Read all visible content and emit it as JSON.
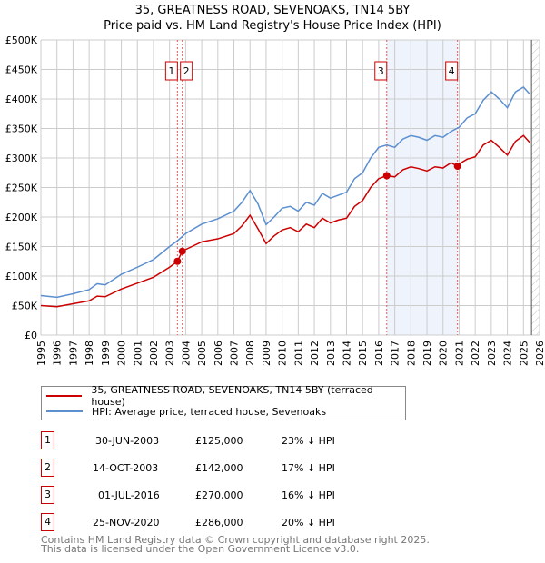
{
  "chart_data": {
    "type": "line",
    "title": "35, GREATNESS ROAD, SEVENOAKS, TN14 5BY",
    "subtitle": "Price paid vs. HM Land Registry's House Price Index (HPI)",
    "xlim": [
      1995,
      2026
    ],
    "ylim": [
      0,
      500000
    ],
    "x_ticks": [
      1995,
      1996,
      1997,
      1998,
      1999,
      2000,
      2001,
      2002,
      2003,
      2004,
      2005,
      2006,
      2007,
      2008,
      2009,
      2010,
      2011,
      2012,
      2013,
      2014,
      2015,
      2016,
      2017,
      2018,
      2019,
      2020,
      2021,
      2022,
      2023,
      2024,
      2025,
      2026
    ],
    "y_ticks": [
      {
        "v": 0,
        "label": "£0"
      },
      {
        "v": 50000,
        "label": "£50K"
      },
      {
        "v": 100000,
        "label": "£100K"
      },
      {
        "v": 150000,
        "label": "£150K"
      },
      {
        "v": 200000,
        "label": "£200K"
      },
      {
        "v": 250000,
        "label": "£250K"
      },
      {
        "v": 300000,
        "label": "£300K"
      },
      {
        "v": 350000,
        "label": "£350K"
      },
      {
        "v": 400000,
        "label": "£400K"
      },
      {
        "v": 450000,
        "label": "£450K"
      },
      {
        "v": 500000,
        "label": "£500K"
      }
    ],
    "grid": true,
    "series": [
      {
        "name": "35, GREATNESS ROAD, SEVENOAKS, TN14 5BY (terraced house)",
        "color": "#cc0000",
        "x": [
          1995,
          1996,
          1997,
          1998,
          1998.5,
          1999,
          2000,
          2001,
          2002,
          2003,
          2003.49,
          2003.79,
          2004,
          2005,
          2006,
          2007,
          2007.5,
          2008,
          2008.5,
          2009,
          2009.5,
          2010,
          2010.5,
          2011,
          2011.5,
          2012,
          2012.5,
          2013,
          2013.5,
          2014,
          2014.5,
          2015,
          2015.5,
          2016,
          2016.5,
          2017,
          2017.5,
          2018,
          2018.5,
          2019,
          2019.5,
          2020,
          2020.5,
          2020.9,
          2021,
          2021.5,
          2022,
          2022.5,
          2023,
          2023.5,
          2024,
          2024.5,
          2025,
          2025.4
        ],
        "y": [
          50000,
          48000,
          53000,
          58000,
          66000,
          65000,
          78000,
          88000,
          98000,
          115000,
          125000,
          142000,
          145000,
          158000,
          163000,
          172000,
          185000,
          203000,
          180000,
          155000,
          168000,
          178000,
          182000,
          175000,
          188000,
          182000,
          198000,
          190000,
          195000,
          198000,
          218000,
          228000,
          250000,
          265000,
          270000,
          268000,
          280000,
          285000,
          282000,
          278000,
          285000,
          283000,
          292000,
          286000,
          290000,
          298000,
          302000,
          322000,
          330000,
          318000,
          305000,
          328000,
          338000,
          326000
        ]
      },
      {
        "name": "HPI: Average price, terraced house, Sevenoaks",
        "color": "#5b8fd0",
        "x": [
          1995,
          1996,
          1997,
          1998,
          1998.5,
          1999,
          2000,
          2001,
          2002,
          2003,
          2003.5,
          2004,
          2005,
          2006,
          2007,
          2007.5,
          2008,
          2008.5,
          2009,
          2009.5,
          2010,
          2010.5,
          2011,
          2011.5,
          2012,
          2012.5,
          2013,
          2013.5,
          2014,
          2014.5,
          2015,
          2015.5,
          2016,
          2016.5,
          2017,
          2017.5,
          2018,
          2018.5,
          2019,
          2019.5,
          2020,
          2020.5,
          2021,
          2021.5,
          2022,
          2022.5,
          2023,
          2023.5,
          2024,
          2024.5,
          2025,
          2025.4
        ],
        "y": [
          67000,
          64000,
          70000,
          77000,
          87000,
          85000,
          103000,
          115000,
          128000,
          150000,
          160000,
          172000,
          188000,
          197000,
          210000,
          225000,
          245000,
          222000,
          187000,
          200000,
          215000,
          218000,
          210000,
          225000,
          220000,
          240000,
          232000,
          237000,
          242000,
          265000,
          275000,
          300000,
          318000,
          322000,
          318000,
          332000,
          338000,
          335000,
          330000,
          338000,
          335000,
          345000,
          352000,
          368000,
          375000,
          398000,
          412000,
          400000,
          385000,
          412000,
          420000,
          408000
        ]
      }
    ],
    "transactions": [
      {
        "n": "1",
        "x": 2003.49,
        "date": "30-JUN-2003",
        "price": 125000,
        "price_label": "£125,000",
        "hpi": "23% ↓ HPI"
      },
      {
        "n": "2",
        "x": 2003.79,
        "date": "14-OCT-2003",
        "price": 142000,
        "price_label": "£142,000",
        "hpi": "17% ↓ HPI"
      },
      {
        "n": "3",
        "x": 2016.5,
        "date": "01-JUL-2016",
        "price": 270000,
        "price_label": "£270,000",
        "hpi": "16% ↓ HPI"
      },
      {
        "n": "4",
        "x": 2020.9,
        "date": "25-NOV-2020",
        "price": 286000,
        "price_label": "£286,000",
        "hpi": "20% ↓ HPI"
      }
    ],
    "shaded_range": [
      2016.5,
      2020.9
    ],
    "forecast_hatch_from": 2025.5
  },
  "legend": {
    "red": "35, GREATNESS ROAD, SEVENOAKS, TN14 5BY (terraced house)",
    "blue": "HPI: Average price, terraced house, Sevenoaks"
  },
  "footer": {
    "line1": "Contains HM Land Registry data © Crown copyright and database right 2025.",
    "line2": "This data is licensed under the Open Government Licence v3.0."
  }
}
